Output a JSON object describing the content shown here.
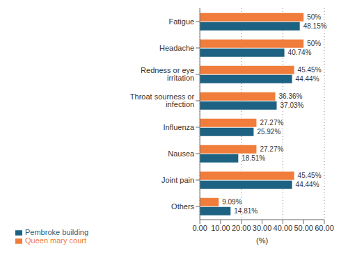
{
  "chart_data": {
    "type": "bar",
    "orientation": "horizontal",
    "categories": [
      "Fatigue",
      "Headache",
      "Redness or eye irritation",
      "Throat sourness or infection",
      "Influenza",
      "Nausea",
      "Joint pain",
      "Others"
    ],
    "series": [
      {
        "name": "Queen mary court",
        "color": "#f07d3b",
        "values": [
          50,
          50,
          45.45,
          36.36,
          27.27,
          27.27,
          45.45,
          9.09
        ],
        "value_labels": [
          "50%",
          "50%",
          "45.45%",
          "36.36%",
          "27.27%",
          "27.27%",
          "45.45%",
          "9.09%"
        ]
      },
      {
        "name": "Pembroke building",
        "color": "#1d6282",
        "values": [
          48.15,
          40.74,
          44.44,
          37.03,
          25.92,
          18.51,
          44.44,
          14.81
        ],
        "value_labels": [
          "48.15%",
          "40.74%",
          "44.44%",
          "37.03%",
          "25.92%",
          "18.51%",
          "44.44%",
          "14.81%"
        ]
      }
    ],
    "xlabel": "(%)",
    "xlim": [
      0,
      60
    ],
    "xticks": [
      {
        "value": 0,
        "label": "0.00"
      },
      {
        "value": 10,
        "label": "10.00"
      },
      {
        "value": 20,
        "label": "20.00"
      },
      {
        "value": 30,
        "label": "30.00"
      },
      {
        "value": 40,
        "label": "40.00"
      },
      {
        "value": 50,
        "label": "50.00"
      },
      {
        "value": 60,
        "label": "60.00"
      }
    ],
    "grid": true,
    "legend": "lower left",
    "data_labels": true
  }
}
